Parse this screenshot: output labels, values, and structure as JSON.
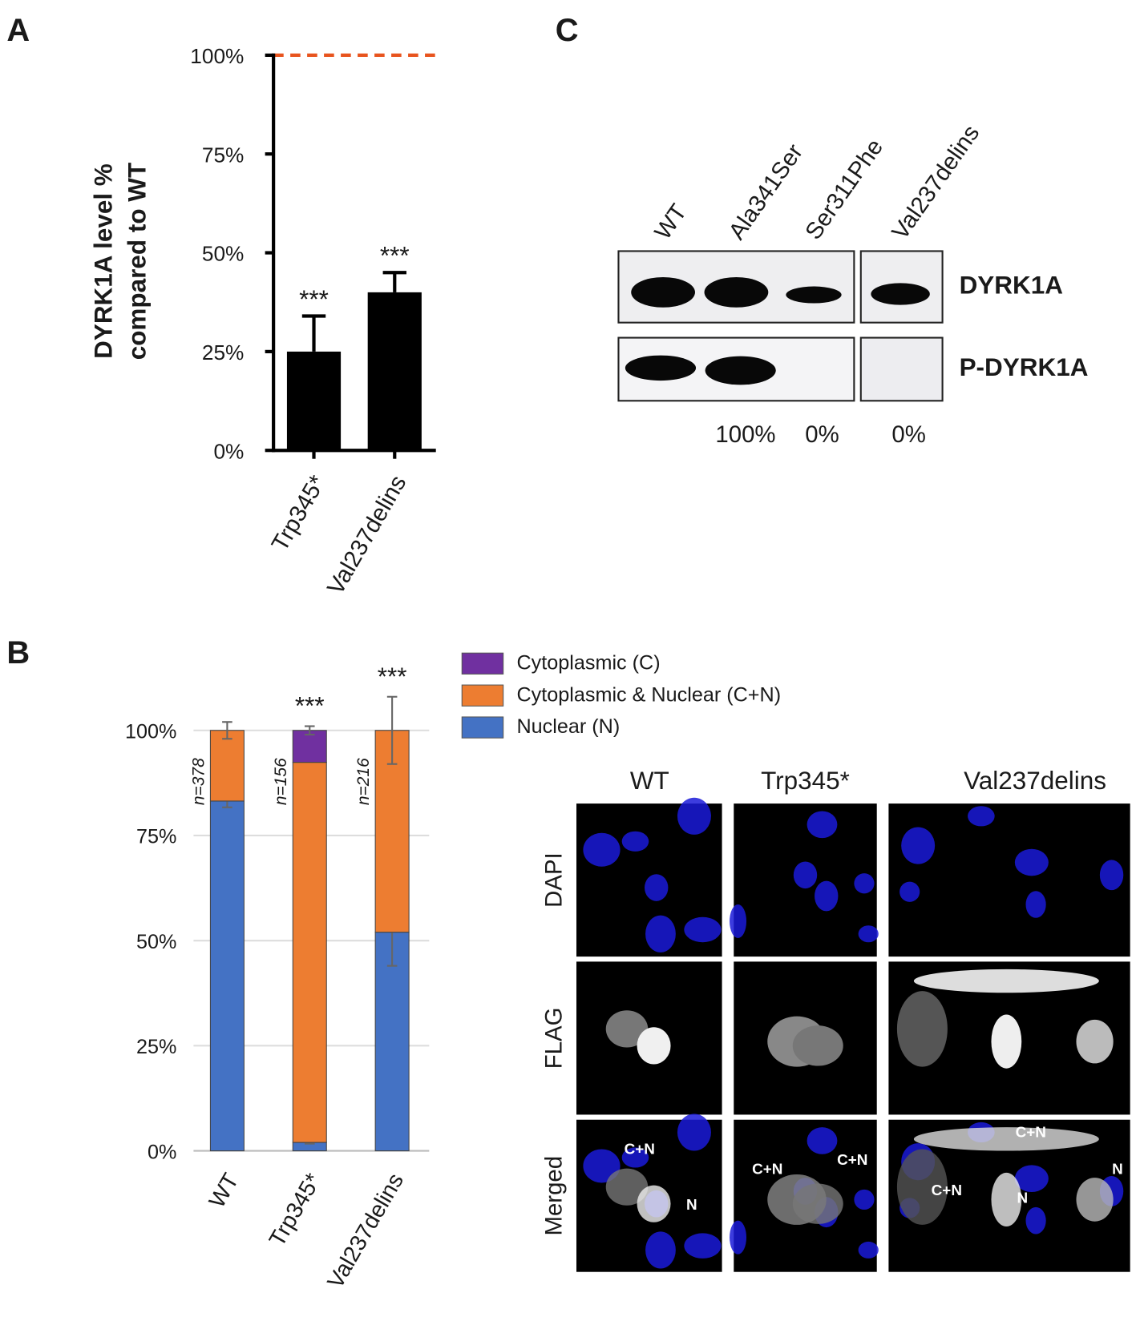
{
  "chart_data": [
    {
      "type": "bar",
      "panel": "A",
      "ylabel": [
        "DYRK1A level %",
        "compared to WT"
      ],
      "categories": [
        "Trp345*",
        "Val237delins"
      ],
      "values": [
        25,
        40
      ],
      "errors": [
        9,
        5
      ],
      "annotations": [
        "***",
        "***"
      ],
      "color": "#000000",
      "reference_line": {
        "value": 100,
        "color": "#e8541e"
      },
      "ylim": [
        0,
        100
      ],
      "yticks": [
        {
          "value": 0,
          "label": "0%"
        },
        {
          "value": 25,
          "label": "25%"
        },
        {
          "value": 50,
          "label": "50%"
        },
        {
          "value": 75,
          "label": "75%"
        },
        {
          "value": 100,
          "label": "100%"
        }
      ]
    },
    {
      "type": "stacked_bar",
      "panel": "B",
      "categories": [
        "WT",
        "Trp345*",
        "Val237delins"
      ],
      "n_labels": [
        "n=378",
        "n=156",
        "n=216"
      ],
      "annotations": [
        null,
        "***",
        "***"
      ],
      "series": [
        {
          "name": "Cytoplasmic (C)",
          "color": "#7030a0",
          "values": [
            0,
            7.6,
            0
          ],
          "errors": [
            null,
            1,
            null
          ]
        },
        {
          "name": "Cytoplasmic & Nuclear (C+N)",
          "color": "#ed7d31",
          "values": [
            16.8,
            90.4,
            48
          ],
          "errors": [
            2,
            null,
            8
          ]
        },
        {
          "name": "Nuclear (N)",
          "color": "#4472c4",
          "values": [
            83.2,
            2,
            52
          ],
          "errors": [
            1.5,
            0.3,
            8
          ]
        }
      ],
      "ylim": [
        0,
        100
      ],
      "yticks": [
        {
          "value": 0,
          "label": "0%"
        },
        {
          "value": 25,
          "label": "25%"
        },
        {
          "value": 50,
          "label": "50%"
        },
        {
          "value": 75,
          "label": "75%"
        },
        {
          "value": 100,
          "label": "100%"
        }
      ],
      "grid": true
    },
    {
      "type": "blot",
      "panel": "C",
      "categories": [
        "WT",
        "Ala341Ser",
        "Ser311Phe",
        "Val237delins"
      ],
      "rows": [
        "DYRK1A",
        "P-DYRK1A"
      ],
      "values": [
        null,
        100,
        0,
        0
      ],
      "value_labels": [
        null,
        "100%",
        "0%",
        "0%"
      ]
    }
  ],
  "microscopy": {
    "columns": [
      "WT",
      "Trp345*",
      "Val237delins"
    ],
    "rows": [
      "DAPI",
      "FLAG",
      "Merged"
    ],
    "merged_labels": [
      "C+N",
      "N",
      "C+N",
      "C+N",
      "C+N",
      "C+N",
      "N",
      "N"
    ]
  }
}
